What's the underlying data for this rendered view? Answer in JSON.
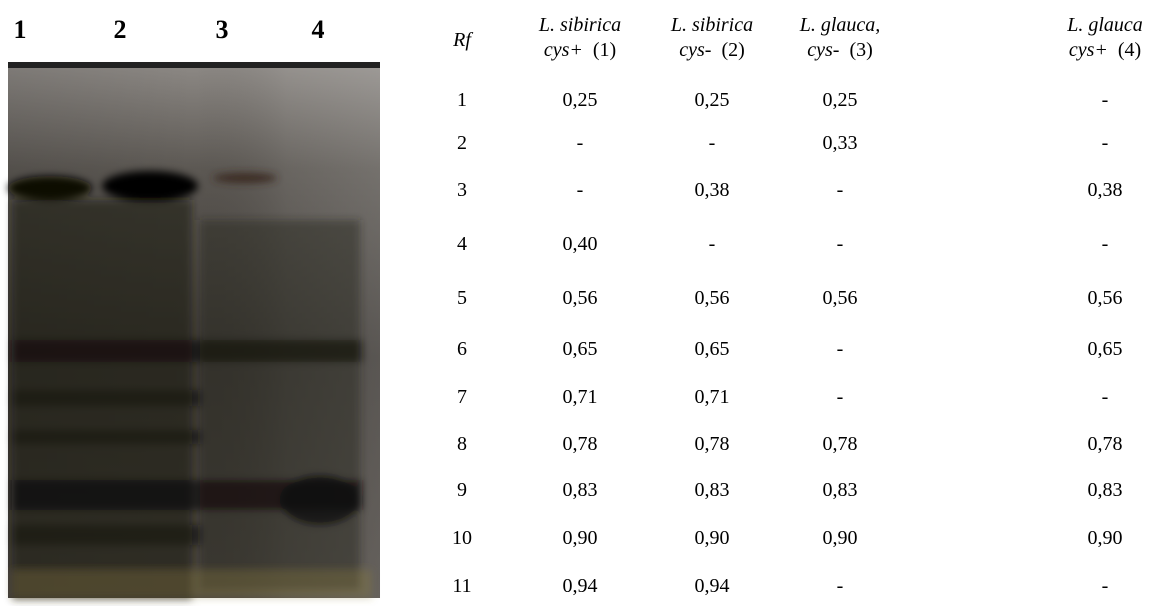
{
  "gel": {
    "lanes": [
      "1",
      "2",
      "3",
      "4"
    ]
  },
  "table": {
    "rf_header": "Rf",
    "columns": [
      {
        "species": "L. sibirica",
        "genotype": "cys+",
        "lane": "(1)"
      },
      {
        "species": "L. sibirica",
        "genotype": "cys-",
        "lane": "(2)"
      },
      {
        "species": "L. glauca,",
        "genotype": "cys-",
        "lane": "(3)"
      },
      {
        "species": "L. glauca",
        "genotype": "cys+",
        "lane": "(4)"
      }
    ],
    "rows": [
      [
        "1",
        "0,25",
        "0,25",
        "0,25",
        "-"
      ],
      [
        "2",
        "-",
        "-",
        "0,33",
        "-"
      ],
      [
        "3",
        "-",
        "0,38",
        "-",
        "0,38"
      ],
      [
        "4",
        "0,40",
        "-",
        "-",
        "-"
      ],
      [
        "5",
        "0,56",
        "0,56",
        "0,56",
        "0,56"
      ],
      [
        "6",
        "0,65",
        "0,65",
        "-",
        "0,65"
      ],
      [
        "7",
        "0,71",
        "0,71",
        "-",
        "-"
      ],
      [
        "8",
        "0,78",
        "0,78",
        "0,78",
        "0,78"
      ],
      [
        "9",
        "0,83",
        "0,83",
        "0,83",
        "0,83"
      ],
      [
        "10",
        "0,90",
        "0,90",
        "0,90",
        "0,90"
      ],
      [
        "11",
        "0,94",
        "0,94",
        "-",
        "-"
      ]
    ]
  }
}
